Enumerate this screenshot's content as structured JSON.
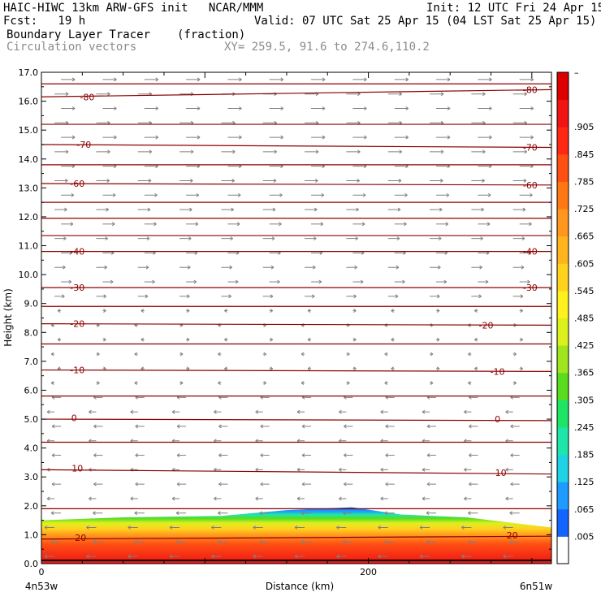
{
  "header": {
    "line1_left": "HAIC-HIWC 13km ARW-GFS init   NCAR/MMM",
    "line1_right": "Init: 12 UTC Fri 24 Apr 15",
    "line2_left": "Fcst:   19 h",
    "line2_right": "Valid: 07 UTC Sat 25 Apr 15 (04 LST Sat 25 Apr 15)",
    "field_name": "Boundary Layer Tracer",
    "field_units": "(fraction)",
    "overlay_name": "Circulation vectors",
    "xy_info": "XY= 259.5, 91.6 to 274.6,110.2"
  },
  "chart_data": {
    "type": "heatmap",
    "title": "Boundary Layer Tracer",
    "units": "(fraction)",
    "xlabel": "Distance (km)",
    "ylabel": "Height (km)",
    "xlim": [
      0,
      312
    ],
    "ylim": [
      0,
      17
    ],
    "x_ticks": [
      0,
      200
    ],
    "x_end_labels": [
      "4n53w",
      "6n51w"
    ],
    "y_ticks": [
      "0.0",
      "1.0",
      "2.0",
      "3.0",
      "4.0",
      "5.0",
      "6.0",
      "7.0",
      "8.0",
      "9.0",
      "10.0",
      "11.0",
      "12.0",
      "13.0",
      "14.0",
      "15.0",
      "16.0",
      "17.0"
    ],
    "colorbar": {
      "labels": [
        ".005",
        ".065",
        ".125",
        ".185",
        ".245",
        ".305",
        ".365",
        ".425",
        ".485",
        ".545",
        ".605",
        ".665",
        ".725",
        ".785",
        ".845",
        ".905"
      ],
      "top_label": "–",
      "colors": [
        "#ffffff",
        "#1464ff",
        "#1e9bff",
        "#1ed2e6",
        "#1ee6aa",
        "#1ee664",
        "#5adc1e",
        "#a0e61e",
        "#dcf01e",
        "#fff01e",
        "#ffd21e",
        "#ffb41e",
        "#ff961e",
        "#ff7814",
        "#ff5014",
        "#ff2814",
        "#f01414",
        "#dc0000"
      ]
    },
    "tracer_top_km": [
      {
        "x": 0,
        "top": 1.5
      },
      {
        "x": 50,
        "top": 1.6
      },
      {
        "x": 110,
        "top": 1.65
      },
      {
        "x": 150,
        "top": 1.85
      },
      {
        "x": 190,
        "top": 1.95
      },
      {
        "x": 220,
        "top": 1.7
      },
      {
        "x": 260,
        "top": 1.6
      },
      {
        "x": 312,
        "top": 1.25
      }
    ],
    "temperature_contours": [
      {
        "label": "20",
        "y_left": 0.85,
        "y_right": 0.95
      },
      {
        "label": "10",
        "y_left": 3.25,
        "y_right": 3.1
      },
      {
        "label": "0",
        "y_left": 5.0,
        "y_right": 4.95
      },
      {
        "label": "-10",
        "y_left": 6.7,
        "y_right": 6.65
      },
      {
        "label": "-20",
        "y_left": 8.3,
        "y_right": 8.25
      },
      {
        "label": "-30",
        "y_left": 9.55,
        "y_right": 9.55
      },
      {
        "label": "-40",
        "y_left": 10.8,
        "y_right": 10.8
      },
      {
        "label": "-60",
        "y_left": 13.15,
        "y_right": 13.1
      },
      {
        "label": "-70",
        "y_left": 14.5,
        "y_right": 14.4
      },
      {
        "label": "-80",
        "y_left": 16.15,
        "y_right": 16.4
      }
    ],
    "contour_label_positions": [
      {
        "label": "20",
        "x": 24,
        "y": 0.9
      },
      {
        "label": "20",
        "x": 288,
        "y": 0.98
      },
      {
        "label": "10",
        "x": 22,
        "y": 3.3
      },
      {
        "label": "10",
        "x": 281,
        "y": 3.15
      },
      {
        "label": "0",
        "x": 20,
        "y": 5.05
      },
      {
        "label": "0",
        "x": 279,
        "y": 5.0
      },
      {
        "label": "-10",
        "x": 22,
        "y": 6.7
      },
      {
        "label": "-10",
        "x": 279,
        "y": 6.65
      },
      {
        "label": "-20",
        "x": 22,
        "y": 8.3
      },
      {
        "label": "-20",
        "x": 272,
        "y": 8.25
      },
      {
        "label": "-30",
        "x": 22,
        "y": 9.55
      },
      {
        "label": "-30",
        "x": 299,
        "y": 9.55
      },
      {
        "label": "-40",
        "x": 22,
        "y": 10.8
      },
      {
        "label": "-40",
        "x": 299,
        "y": 10.8
      },
      {
        "label": "-60",
        "x": 22,
        "y": 13.15
      },
      {
        "label": "-60",
        "x": 299,
        "y": 13.1
      },
      {
        "label": "-70",
        "x": 26,
        "y": 14.5
      },
      {
        "label": "-70",
        "x": 299,
        "y": 14.4
      },
      {
        "label": "-80",
        "x": 28,
        "y": 16.15
      },
      {
        "label": "-80",
        "x": 299,
        "y": 16.4
      }
    ],
    "extra_contour_levels_km": [
      1.9,
      4.2,
      5.8,
      7.6,
      8.9,
      11.35,
      11.95,
      12.5,
      13.8,
      15.2,
      16.6
    ]
  }
}
